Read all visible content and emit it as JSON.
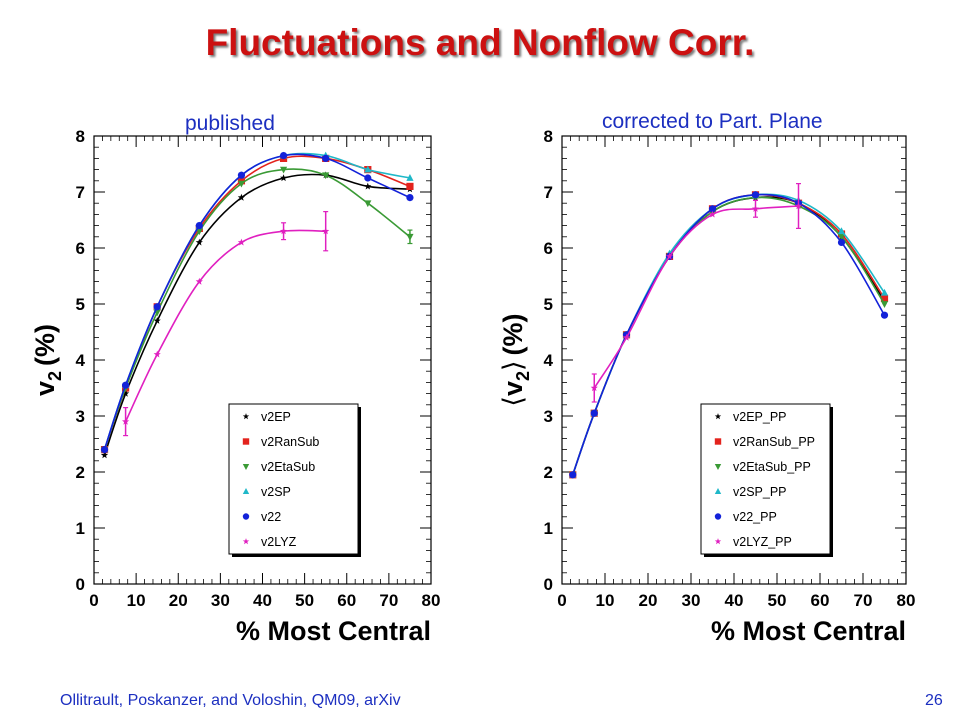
{
  "slide": {
    "title": "Fluctuations and Nonflow Corr.",
    "footer_citation": "Ollitrault, Poskanzer, and Voloshin, QM09, arXiv",
    "page_number": "26",
    "colors": {
      "title": "#cc1111",
      "label": "#1c2fc0"
    }
  },
  "chart_data": [
    {
      "type": "line",
      "panel_label": "published",
      "xlabel": "% Most Central",
      "ylabel_main": "v",
      "ylabel_sub": "2",
      "ylabel_unit": "(%)",
      "ylabel_brackets": false,
      "xlim": [
        0,
        80
      ],
      "ylim": [
        0,
        8
      ],
      "xticks": [
        0,
        10,
        20,
        30,
        40,
        50,
        60,
        70,
        80
      ],
      "yticks": [
        0,
        1,
        2,
        3,
        4,
        5,
        6,
        7,
        8
      ],
      "grid": false,
      "legend_position": "bottom-right",
      "series": [
        {
          "name": "v2EP",
          "color": "#000000",
          "marker": "star",
          "x": [
            2.5,
            7.5,
            15,
            25,
            35,
            45,
            55,
            65,
            75
          ],
          "y": [
            2.3,
            3.4,
            4.7,
            6.1,
            6.9,
            7.25,
            7.3,
            7.1,
            7.05
          ]
        },
        {
          "name": "v2RanSub",
          "color": "#e3231d",
          "marker": "square",
          "x": [
            2.5,
            7.5,
            15,
            25,
            35,
            45,
            55,
            65,
            75
          ],
          "y": [
            2.4,
            3.5,
            4.95,
            6.35,
            7.2,
            7.6,
            7.6,
            7.4,
            7.1
          ]
        },
        {
          "name": "v2EtaSub",
          "color": "#3a9a35",
          "marker": "triangle-down",
          "x": [
            2.5,
            7.5,
            15,
            25,
            35,
            45,
            55,
            65,
            75
          ],
          "y": [
            2.4,
            3.5,
            4.85,
            6.3,
            7.15,
            7.4,
            7.3,
            6.8,
            6.2
          ],
          "yerr": [
            0,
            0,
            0,
            0,
            0,
            0,
            0,
            0,
            0.12
          ]
        },
        {
          "name": "v2SP",
          "color": "#1fb8c8",
          "marker": "triangle-up",
          "x": [
            2.5,
            7.5,
            15,
            25,
            35,
            45,
            55,
            65,
            75
          ],
          "y": [
            2.4,
            3.55,
            4.95,
            6.4,
            7.3,
            7.65,
            7.65,
            7.4,
            7.25
          ]
        },
        {
          "name": "v22",
          "color": "#1322d9",
          "marker": "circle",
          "x": [
            2.5,
            7.5,
            15,
            25,
            35,
            45,
            55,
            65,
            75
          ],
          "y": [
            2.4,
            3.55,
            4.95,
            6.4,
            7.3,
            7.65,
            7.6,
            7.25,
            6.9
          ]
        },
        {
          "name": "v2LYZ",
          "color": "#e020c0",
          "marker": "star",
          "x": [
            7.5,
            15,
            25,
            35,
            45,
            55
          ],
          "y": [
            2.9,
            4.1,
            5.4,
            6.1,
            6.3,
            6.3
          ],
          "yerr": [
            0.25,
            0,
            0,
            0,
            0.15,
            0.35
          ]
        }
      ]
    },
    {
      "type": "line",
      "panel_label": "corrected to Part. Plane",
      "xlabel": "% Most Central",
      "ylabel_main": "v",
      "ylabel_sub": "2",
      "ylabel_unit": "(%)",
      "ylabel_brackets": true,
      "xlim": [
        0,
        80
      ],
      "ylim": [
        0,
        8
      ],
      "xticks": [
        0,
        10,
        20,
        30,
        40,
        50,
        60,
        70,
        80
      ],
      "yticks": [
        0,
        1,
        2,
        3,
        4,
        5,
        6,
        7,
        8
      ],
      "grid": false,
      "legend_position": "bottom-right",
      "series": [
        {
          "name": "v2EP_PP",
          "color": "#000000",
          "marker": "star",
          "x": [
            2.5,
            7.5,
            15,
            25,
            35,
            45,
            55,
            65,
            75
          ],
          "y": [
            1.95,
            3.05,
            4.45,
            5.85,
            6.65,
            6.9,
            6.8,
            6.2,
            5.05
          ]
        },
        {
          "name": "v2RanSub_PP",
          "color": "#e3231d",
          "marker": "square",
          "x": [
            2.5,
            7.5,
            15,
            25,
            35,
            45,
            55,
            65,
            75
          ],
          "y": [
            1.95,
            3.05,
            4.45,
            5.85,
            6.7,
            6.95,
            6.8,
            6.25,
            5.1
          ]
        },
        {
          "name": "v2EtaSub_PP",
          "color": "#3a9a35",
          "marker": "triangle-down",
          "x": [
            2.5,
            7.5,
            15,
            25,
            35,
            45,
            55,
            65,
            75
          ],
          "y": [
            1.95,
            3.05,
            4.45,
            5.85,
            6.65,
            6.9,
            6.75,
            6.2,
            5.0
          ]
        },
        {
          "name": "v2SP_PP",
          "color": "#1fb8c8",
          "marker": "triangle-up",
          "x": [
            2.5,
            7.5,
            15,
            25,
            35,
            45,
            55,
            65,
            75
          ],
          "y": [
            1.95,
            3.05,
            4.45,
            5.9,
            6.7,
            6.95,
            6.85,
            6.3,
            5.2
          ]
        },
        {
          "name": "v22_PP",
          "color": "#1322d9",
          "marker": "circle",
          "x": [
            2.5,
            7.5,
            15,
            25,
            35,
            45,
            55,
            65,
            75
          ],
          "y": [
            1.95,
            3.05,
            4.45,
            5.85,
            6.7,
            6.95,
            6.8,
            6.1,
            4.8
          ]
        },
        {
          "name": "v2LYZ_PP",
          "color": "#e020c0",
          "marker": "star",
          "x": [
            7.5,
            15,
            25,
            35,
            45,
            55
          ],
          "y": [
            3.5,
            4.4,
            5.85,
            6.6,
            6.7,
            6.75
          ],
          "yerr": [
            0.25,
            0,
            0,
            0,
            0.15,
            0.4
          ]
        }
      ]
    }
  ]
}
